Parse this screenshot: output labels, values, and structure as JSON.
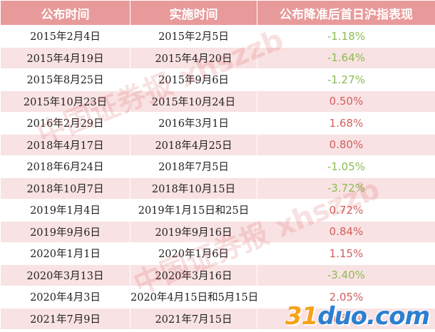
{
  "headers": [
    "公布时间",
    "实施时间",
    "公布降准后首日沪指表现"
  ],
  "rows": [
    {
      "announce": "2015年2月4日",
      "effective": "2015年2月5日",
      "change": "-1.18%",
      "dir": "neg"
    },
    {
      "announce": "2015年4月19日",
      "effective": "2015年4月20日",
      "change": "-1.64%",
      "dir": "neg"
    },
    {
      "announce": "2015年8月25日",
      "effective": "2015年9月6日",
      "change": "-1.27%",
      "dir": "neg"
    },
    {
      "announce": "2015年10月23日",
      "effective": "2015年10月24日",
      "change": "0.50%",
      "dir": "pos"
    },
    {
      "announce": "2016年2月29日",
      "effective": "2016年3月1日",
      "change": "1.68%",
      "dir": "pos"
    },
    {
      "announce": "2018年4月17日",
      "effective": "2018年4月25日",
      "change": "0.80%",
      "dir": "pos"
    },
    {
      "announce": "2018年6月24日",
      "effective": "2018年7月5日",
      "change": "-1.05%",
      "dir": "neg"
    },
    {
      "announce": "2018年10月7日",
      "effective": "2018年10月15日",
      "change": "-3.72%",
      "dir": "neg"
    },
    {
      "announce": "2019年1月4日",
      "effective": "2019年1月15日和25日",
      "change": "0.72%",
      "dir": "pos"
    },
    {
      "announce": "2019年9月6日",
      "effective": "2019年9月16日",
      "change": "0.84%",
      "dir": "pos"
    },
    {
      "announce": "2020年1月1日",
      "effective": "2020年1月6日",
      "change": "1.15%",
      "dir": "pos"
    },
    {
      "announce": "2020年3月13日",
      "effective": "2020年3月16日",
      "change": "-3.40%",
      "dir": "neg"
    },
    {
      "announce": "2020年4月3日",
      "effective": "2020年4月15日和5月15日",
      "change": "2.05%",
      "dir": "pos"
    },
    {
      "announce": "2021年7月9日",
      "effective": "2021年7月15日",
      "change": "0.67%",
      "dir": "pos"
    }
  ],
  "colors": {
    "header_bg": "#e89a9a",
    "row_alt_bg": "#f9e2e3",
    "negative": "#8dbb53",
    "positive": "#d25f5f"
  },
  "watermarks": [
    "中国证券报 xhszzb",
    "中国证券报 xhszzb"
  ],
  "logo": {
    "digits": "31",
    "text": "duo.com"
  }
}
